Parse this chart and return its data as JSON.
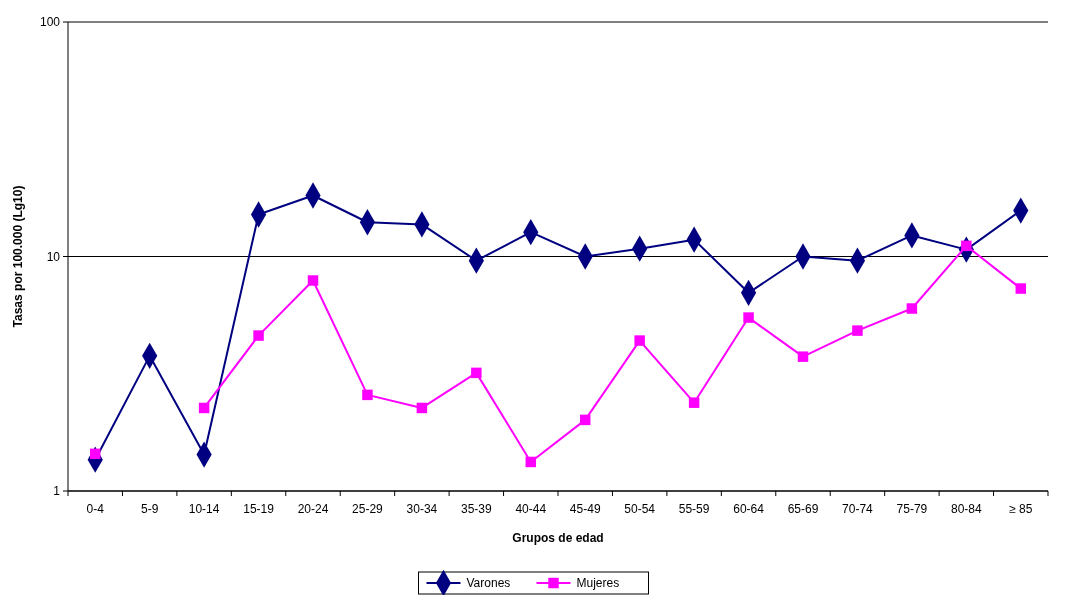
{
  "chart_data": {
    "type": "line",
    "xlabel": "Grupos de edad",
    "ylabel": "Tasas por 100.000 (Lg10)",
    "log": "y",
    "ylim": [
      1,
      100
    ],
    "yticks": [
      1,
      10,
      100
    ],
    "grid": "y",
    "legend": "bottom",
    "categories": [
      "0-4",
      "5-9",
      "10-14",
      "15-19",
      "20-24",
      "25-29",
      "30-34",
      "35-39",
      "40-44",
      "45-49",
      "50-54",
      "55-59",
      "60-64",
      "65-69",
      "70-74",
      "75-79",
      "80-84",
      "≥ 85"
    ],
    "series": [
      {
        "name": "Varones",
        "color": "#000080",
        "marker": "diamond",
        "values": [
          1.36,
          3.77,
          1.43,
          15.1,
          18.2,
          14.0,
          13.7,
          9.6,
          12.7,
          10.0,
          10.8,
          11.8,
          7.0,
          10.0,
          9.6,
          12.3,
          10.7,
          15.7
        ]
      },
      {
        "name": "Mujeres",
        "color": "#ff00ff",
        "marker": "square",
        "values": [
          1.44,
          null,
          2.26,
          4.6,
          7.9,
          2.57,
          2.26,
          3.19,
          1.33,
          2.01,
          4.38,
          2.38,
          5.49,
          3.74,
          4.83,
          6.0,
          11.1,
          7.3
        ]
      }
    ]
  }
}
